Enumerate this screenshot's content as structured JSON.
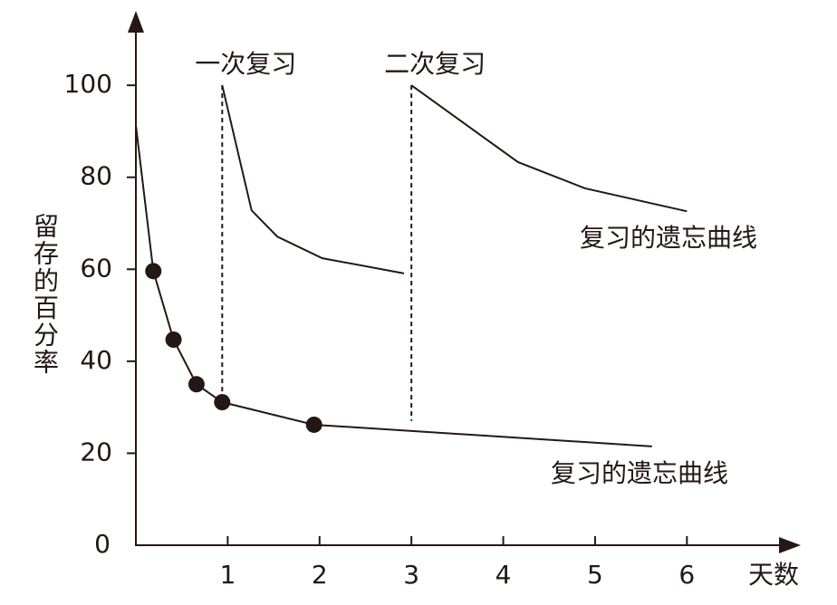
{
  "chart_data": {
    "type": "line",
    "xlabel": "天数",
    "ylabel": "留存的百分率",
    "xlim": [
      0,
      7.2
    ],
    "ylim": [
      0,
      115
    ],
    "xticks": [
      1,
      2,
      3,
      4,
      5,
      6
    ],
    "yticks": [
      0,
      20,
      40,
      60,
      80,
      100
    ],
    "color": "#231815",
    "series": [
      {
        "name": "复习的遗忘曲线",
        "x": [
          0,
          0.19,
          0.41,
          0.66,
          0.94,
          1.94,
          5.62
        ],
        "values": [
          91.3,
          59.6,
          44.7,
          35,
          31.1,
          26.2,
          21.5
        ],
        "markers": [
          false,
          true,
          true,
          true,
          true,
          true,
          false
        ]
      },
      {
        "name": "复习的遗忘曲线",
        "x": [
          0.94,
          1.26,
          1.54,
          2.03,
          2.92
        ],
        "values": [
          100,
          72.8,
          67.1,
          62.4,
          59.1
        ]
      },
      {
        "name": "复习的遗忘曲线",
        "x": [
          3,
          4.16,
          4.89,
          6
        ],
        "values": [
          100,
          83.3,
          77.6,
          72.6
        ]
      }
    ],
    "reviews": [
      {
        "label": "一次复习",
        "x": 0.94,
        "ymin": 31.1,
        "ymax": 100
      },
      {
        "label": "二次复习",
        "x": 3,
        "ymin": 27,
        "ymax": 100
      }
    ]
  }
}
